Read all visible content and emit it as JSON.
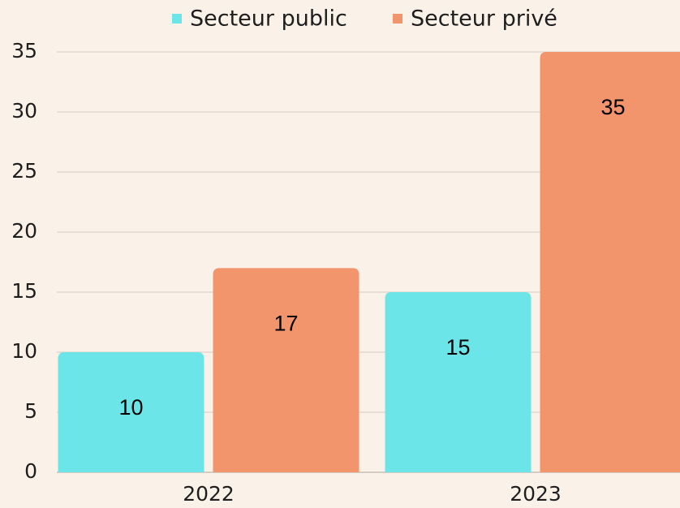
{
  "chart_data": {
    "type": "bar",
    "categories": [
      "2022",
      "2023"
    ],
    "series": [
      {
        "name": "Secteur public",
        "color": "#6ce5e8",
        "values": [
          10,
          15
        ]
      },
      {
        "name": "Secteur privé",
        "color": "#f2946c",
        "values": [
          17,
          35
        ]
      }
    ],
    "ylim": [
      0,
      35
    ],
    "yticks": [
      0,
      5,
      10,
      15,
      20,
      25,
      30,
      35
    ],
    "grid": true,
    "legend": "top"
  }
}
